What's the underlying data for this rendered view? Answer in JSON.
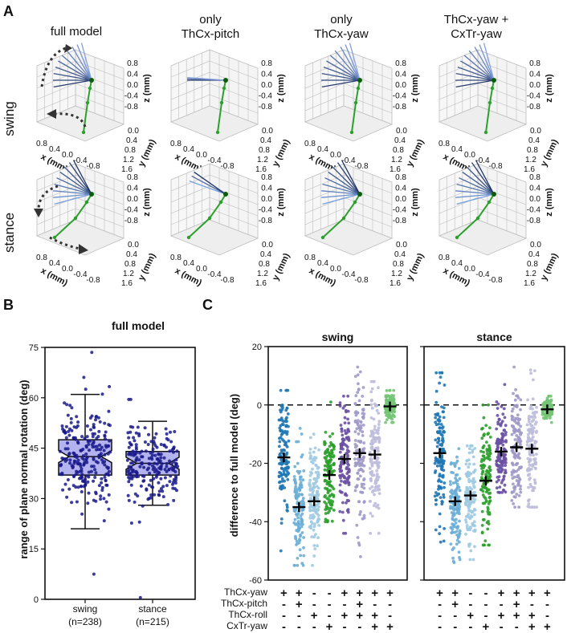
{
  "panels": {
    "A": {
      "letter": "A",
      "columns": [
        "full model",
        "only\nThCx-pitch",
        "only\nThCx-yaw",
        "ThCx-yaw +\nCxTr-yaw"
      ],
      "rows": [
        "swing",
        "stance"
      ],
      "axes": {
        "x_label": "x (mm)",
        "y_label": "y (mm)",
        "z_label": "z (mm)",
        "x_ticks": [
          "0.8",
          "0.4",
          "0.0",
          "-0.4",
          "-0.8"
        ],
        "y_ticks": [
          "0.0",
          "0.4",
          "0.8",
          "1.2",
          "1.6"
        ],
        "z_ticks": [
          "0.8",
          "0.4",
          "0.0",
          "-0.4",
          "-0.8"
        ]
      }
    },
    "B": {
      "letter": "B",
      "title": "full model",
      "ylabel": "range of plane normal rotation (deg)"
    },
    "C": {
      "letter": "C",
      "ylabel": "difference to full model (deg)",
      "factor_labels": [
        "ThCx-yaw",
        "ThCx-pitch",
        "ThCx-roll",
        "CxTr-yaw"
      ],
      "factor_table": [
        [
          "+",
          "+",
          "-",
          "-",
          "+",
          "+",
          "+",
          "+"
        ],
        [
          "-",
          "+",
          "-",
          "-",
          "-",
          "+",
          "-",
          "-"
        ],
        [
          "-",
          "-",
          "+",
          "-",
          "+",
          "+",
          "+",
          "-"
        ],
        [
          "-",
          "-",
          "-",
          "+",
          "-",
          "-",
          "+",
          "+"
        ]
      ]
    }
  },
  "chart_data": [
    {
      "panel": "B",
      "type": "box",
      "title": "full model",
      "ylabel": "range of plane normal rotation (deg)",
      "ylim": [
        0,
        75
      ],
      "yticks": [
        0,
        15,
        30,
        45,
        60,
        75
      ],
      "categories": [
        "swing\n(n=238)",
        "stance\n(n=215)"
      ],
      "boxes": [
        {
          "name": "swing",
          "n": 238,
          "whisker_low": 21,
          "q1": 37,
          "median": 42.5,
          "q3": 47.5,
          "whisker_high": 61,
          "min": 7.5,
          "max": 73.5
        },
        {
          "name": "stance",
          "n": 215,
          "whisker_low": 28,
          "q1": 37,
          "median": 40.5,
          "q3": 44,
          "whisker_high": 53,
          "min": 0.5,
          "max": 59.5
        }
      ],
      "box_color": "#b3b3f0",
      "point_color": "#1a1a8c"
    },
    {
      "panel": "C",
      "type": "strip",
      "title": "swing",
      "ylabel": "difference to full model (deg)",
      "ylim": [
        -60,
        20
      ],
      "yticks": [
        -60,
        -40,
        -20,
        0,
        20
      ],
      "reference_line": 0,
      "series": [
        {
          "index": 1,
          "mean": -18,
          "low": -50,
          "high": 5,
          "color": "#1f77b4"
        },
        {
          "index": 2,
          "mean": -35,
          "low": -55,
          "high": -8,
          "color": "#6baed6"
        },
        {
          "index": 3,
          "mean": -33,
          "low": -55,
          "high": -10,
          "color": "#9ecae1"
        },
        {
          "index": 4,
          "mean": -24,
          "low": -40,
          "high": 1,
          "color": "#2ca02c"
        },
        {
          "index": 5,
          "mean": -18.5,
          "low": -44,
          "high": 3,
          "color": "#6a51a3"
        },
        {
          "index": 6,
          "mean": -16.5,
          "low": -52,
          "high": 13,
          "color": "#9e9ac8"
        },
        {
          "index": 7,
          "mean": -17,
          "low": -44,
          "high": 8,
          "color": "#bcbddc"
        },
        {
          "index": 8,
          "mean": -0.5,
          "low": -6,
          "high": 5,
          "color": "#74c476"
        }
      ]
    },
    {
      "panel": "C",
      "type": "strip",
      "title": "stance",
      "ylabel": "difference to full model (deg)",
      "ylim": [
        -60,
        20
      ],
      "yticks": [
        -60,
        -40,
        -20,
        0,
        20
      ],
      "reference_line": 0,
      "series": [
        {
          "index": 1,
          "mean": -16.5,
          "low": -47,
          "high": 11,
          "color": "#1f77b4"
        },
        {
          "index": 2,
          "mean": -33,
          "low": -54,
          "high": -15,
          "color": "#6baed6"
        },
        {
          "index": 3,
          "mean": -31,
          "low": -53,
          "high": -14,
          "color": "#9ecae1"
        },
        {
          "index": 4,
          "mean": -26,
          "low": -48,
          "high": 0,
          "color": "#2ca02c"
        },
        {
          "index": 5,
          "mean": -16,
          "low": -30,
          "high": 7,
          "color": "#6a51a3"
        },
        {
          "index": 6,
          "mean": -14.5,
          "low": -35,
          "high": 13,
          "color": "#9e9ac8"
        },
        {
          "index": 7,
          "mean": -15,
          "low": -35,
          "high": 12,
          "color": "#bcbddc"
        },
        {
          "index": 8,
          "mean": -1.5,
          "low": -6,
          "high": 3,
          "color": "#74c476"
        }
      ]
    }
  ]
}
